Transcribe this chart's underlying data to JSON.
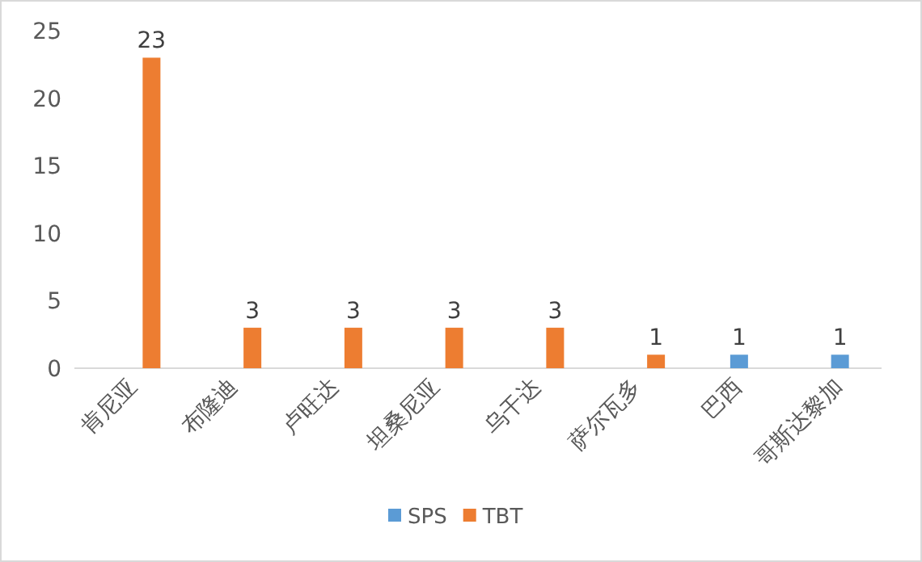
{
  "chart_data": {
    "type": "bar",
    "categories": [
      "肯尼亚",
      "布隆迪",
      "卢旺达",
      "坦桑尼亚",
      "乌干达",
      "萨尔瓦多",
      "巴西",
      "哥斯达黎加"
    ],
    "series": [
      {
        "name": "SPS",
        "color": "#5b9bd5",
        "values": [
          null,
          null,
          null,
          null,
          null,
          null,
          1,
          1
        ]
      },
      {
        "name": "TBT",
        "color": "#ed7d31",
        "values": [
          23,
          3,
          3,
          3,
          3,
          1,
          null,
          null
        ]
      }
    ],
    "ylim": [
      0,
      25
    ],
    "yticks": [
      0,
      5,
      10,
      15,
      20,
      25
    ],
    "data_labels": true,
    "grid": false,
    "legend": "bottom"
  }
}
